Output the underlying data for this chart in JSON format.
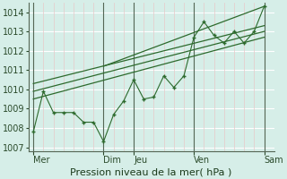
{
  "bg_color": "#d6eee8",
  "grid_color_h": "#ffffff",
  "grid_color_v": "#e8c8c8",
  "line_color": "#2d6a2d",
  "ylim": [
    1006.8,
    1014.5
  ],
  "yticks": [
    1007,
    1008,
    1009,
    1010,
    1011,
    1012,
    1013,
    1014
  ],
  "xlabel": "Pression niveau de la mer( hPa )",
  "xtick_labels": [
    "Mer",
    "Dim",
    "Jeu",
    "Ven",
    "Sam"
  ],
  "xtick_positions": [
    0,
    7,
    10,
    16,
    23
  ],
  "xlim": [
    -0.5,
    24
  ],
  "series_x": [
    0,
    1,
    2,
    3,
    4,
    5,
    6,
    7,
    8,
    9,
    10,
    11,
    12,
    13,
    14,
    15,
    16,
    17,
    18,
    19,
    20,
    21,
    22,
    23
  ],
  "series_y": [
    1007.8,
    1009.9,
    1008.8,
    1008.8,
    1008.8,
    1008.3,
    1008.3,
    1007.3,
    1008.7,
    1009.4,
    1010.5,
    1009.5,
    1009.6,
    1010.7,
    1010.1,
    1010.7,
    1012.7,
    1013.5,
    1012.8,
    1012.4,
    1013.0,
    1012.4,
    1013.0,
    1014.3
  ],
  "trend1_x": [
    0,
    23
  ],
  "trend1_y": [
    1009.5,
    1012.7
  ],
  "trend2_x": [
    0,
    23
  ],
  "trend2_y": [
    1009.9,
    1013.0
  ],
  "trend3_x": [
    0,
    23
  ],
  "trend3_y": [
    1010.3,
    1013.3
  ],
  "trend4_x": [
    7,
    23
  ],
  "trend4_y": [
    1011.2,
    1014.3
  ],
  "fontsize_label": 8,
  "fontsize_tick": 7,
  "vline_positions": [
    0,
    7,
    10,
    16,
    23
  ]
}
